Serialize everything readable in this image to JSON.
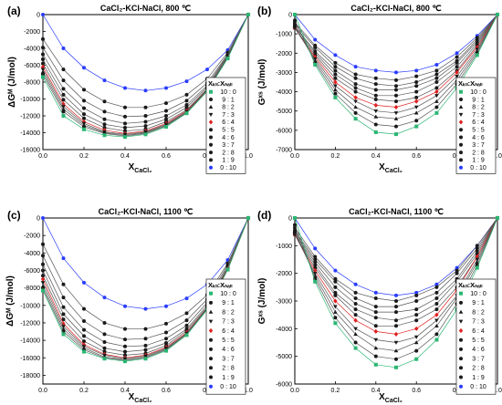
{
  "panel_text": {
    "a": {
      "letter": "(a)",
      "title": "CaCl₂-KCl-NaCl, 800 ℃",
      "ylabel": "ΔGᴹ (J/mol)",
      "xlabel": "X",
      "xlabel_sub": "CaCl₂"
    },
    "b": {
      "letter": "(b)",
      "title": "CaCl₂-KCl-NaCl, 800 ℃",
      "ylabel": "Gˣˢ (J/mol)",
      "xlabel": "X",
      "xlabel_sub": "CaCl₂"
    },
    "c": {
      "letter": "(c)",
      "title": "CaCl₂-KCl-NaCl, 1100 ℃",
      "ylabel": "ΔGᴹ (J/mol)",
      "xlabel": "X",
      "xlabel_sub": "CaCl₂"
    },
    "d": {
      "letter": "(d)",
      "title": "CaCl₂-KCl-NaCl, 1100 ℃",
      "ylabel": "Gˣˢ (J/mol)",
      "xlabel": "X",
      "xlabel_sub": "CaCl₂"
    }
  },
  "legend": {
    "header": "Xₖₗₗ:Xₙₐₗₗ",
    "entries": [
      {
        "label": "10 : 0",
        "marker": "square",
        "color": "#2bb673"
      },
      {
        "label": "9 : 1",
        "marker": "circle",
        "color": "#1a1a1a"
      },
      {
        "label": "8 : 2",
        "marker": "triangle-up",
        "color": "#1a1a1a"
      },
      {
        "label": "7 : 3",
        "marker": "triangle-down",
        "color": "#1a1a1a"
      },
      {
        "label": "6 : 4",
        "marker": "diamond",
        "color": "#e02020"
      },
      {
        "label": "5 : 5",
        "marker": "circle",
        "color": "#1a1a1a"
      },
      {
        "label": "4 : 6",
        "marker": "circle",
        "color": "#1a1a1a"
      },
      {
        "label": "3 : 7",
        "marker": "circle",
        "color": "#1a1a1a"
      },
      {
        "label": "2 : 8",
        "marker": "circle",
        "color": "#1a1a1a"
      },
      {
        "label": "1 : 9",
        "marker": "circle",
        "color": "#1a1a1a"
      },
      {
        "label": "0 : 10",
        "marker": "circle",
        "color": "#2a3cff"
      }
    ]
  },
  "chart_data": [
    {
      "panel": "a",
      "type": "line",
      "xlim": [
        0,
        1.0
      ],
      "ylim": [
        -16000,
        0
      ],
      "xticks": [
        0.0,
        0.2,
        0.4,
        0.6,
        0.8,
        1.0
      ],
      "yticks": [
        0,
        -2000,
        -4000,
        -6000,
        -8000,
        -10000,
        -12000,
        -14000,
        -16000
      ],
      "x": [
        0.0,
        0.1,
        0.2,
        0.3,
        0.4,
        0.5,
        0.6,
        0.7,
        0.8,
        0.9,
        1.0
      ],
      "series": [
        {
          "name": "10 : 0",
          "values": [
            -7400,
            -12000,
            -13600,
            -14300,
            -14500,
            -14200,
            -13300,
            -11700,
            -9100,
            -5200,
            0
          ]
        },
        {
          "name": "9 : 1",
          "values": [
            -7100,
            -11500,
            -13300,
            -14100,
            -14400,
            -14100,
            -13200,
            -11600,
            -9000,
            -5100,
            0
          ]
        },
        {
          "name": "8 : 2",
          "values": [
            -6800,
            -11200,
            -13100,
            -14000,
            -14300,
            -14000,
            -13100,
            -11600,
            -9000,
            -5100,
            0
          ]
        },
        {
          "name": "7 : 3",
          "values": [
            -6500,
            -10900,
            -12900,
            -13900,
            -14200,
            -13900,
            -13000,
            -11500,
            -8900,
            -5100,
            0
          ]
        },
        {
          "name": "6 : 4",
          "values": [
            -6200,
            -10600,
            -12700,
            -13700,
            -14100,
            -13800,
            -12900,
            -11400,
            -8900,
            -5100,
            0
          ]
        },
        {
          "name": "5 : 5",
          "values": [
            -5800,
            -10100,
            -12300,
            -13400,
            -13800,
            -13600,
            -12700,
            -11300,
            -8800,
            -5000,
            0
          ]
        },
        {
          "name": "4 : 6",
          "values": [
            -5300,
            -9500,
            -11800,
            -13000,
            -13400,
            -13200,
            -12400,
            -11000,
            -8600,
            -4900,
            0
          ]
        },
        {
          "name": "3 : 7",
          "values": [
            -4700,
            -8800,
            -11100,
            -12400,
            -12900,
            -12700,
            -12000,
            -10700,
            -8400,
            -4800,
            0
          ]
        },
        {
          "name": "2 : 8",
          "values": [
            -3900,
            -7800,
            -10200,
            -11500,
            -12100,
            -12000,
            -11400,
            -10200,
            -8100,
            -4700,
            0
          ]
        },
        {
          "name": "1 : 9",
          "values": [
            -2900,
            -6500,
            -8900,
            -10300,
            -11000,
            -11000,
            -10500,
            -9500,
            -7600,
            -4500,
            0
          ]
        },
        {
          "name": "0 : 10",
          "values": [
            0,
            -4000,
            -6300,
            -7800,
            -8700,
            -9000,
            -8700,
            -7900,
            -6500,
            -4200,
            0
          ]
        }
      ]
    },
    {
      "panel": "b",
      "type": "line",
      "xlim": [
        0,
        1.0
      ],
      "ylim": [
        -7000,
        0
      ],
      "xticks": [
        0.0,
        0.2,
        0.4,
        0.6,
        0.8,
        1.0
      ],
      "yticks": [
        0,
        -1000,
        -2000,
        -3000,
        -4000,
        -5000,
        -6000,
        -7000
      ],
      "x": [
        0.0,
        0.1,
        0.2,
        0.3,
        0.4,
        0.5,
        0.6,
        0.7,
        0.8,
        0.9,
        1.0
      ],
      "series": [
        {
          "name": "10 : 0",
          "values": [
            0,
            -2600,
            -4300,
            -5400,
            -6100,
            -6200,
            -5800,
            -5100,
            -3800,
            -2100,
            0
          ]
        },
        {
          "name": "9 : 1",
          "values": [
            -300,
            -2500,
            -4100,
            -5100,
            -5700,
            -5800,
            -5500,
            -4800,
            -3600,
            -2000,
            0
          ]
        },
        {
          "name": "8 : 2",
          "values": [
            -600,
            -2400,
            -3900,
            -4800,
            -5300,
            -5400,
            -5100,
            -4500,
            -3400,
            -1900,
            0
          ]
        },
        {
          "name": "7 : 3",
          "values": [
            -700,
            -2300,
            -3700,
            -4500,
            -5000,
            -5100,
            -4800,
            -4200,
            -3200,
            -1800,
            0
          ]
        },
        {
          "name": "6 : 4",
          "values": [
            -700,
            -2200,
            -3500,
            -4300,
            -4700,
            -4800,
            -4500,
            -4000,
            -3000,
            -1700,
            0
          ]
        },
        {
          "name": "5 : 5",
          "values": [
            -700,
            -2100,
            -3300,
            -4000,
            -4400,
            -4500,
            -4300,
            -3800,
            -2900,
            -1600,
            0
          ]
        },
        {
          "name": "4 : 6",
          "values": [
            -600,
            -2000,
            -3100,
            -3800,
            -4200,
            -4200,
            -4000,
            -3500,
            -2700,
            -1500,
            0
          ]
        },
        {
          "name": "3 : 7",
          "values": [
            -600,
            -1900,
            -2900,
            -3600,
            -3900,
            -3900,
            -3700,
            -3300,
            -2500,
            -1400,
            0
          ]
        },
        {
          "name": "2 : 8",
          "values": [
            -500,
            -1700,
            -2700,
            -3300,
            -3600,
            -3700,
            -3500,
            -3100,
            -2400,
            -1300,
            0
          ]
        },
        {
          "name": "1 : 9",
          "values": [
            -400,
            -1600,
            -2500,
            -3100,
            -3300,
            -3400,
            -3200,
            -2900,
            -2200,
            -1200,
            0
          ]
        },
        {
          "name": "0 : 10",
          "values": [
            0,
            -1300,
            -2100,
            -2700,
            -2900,
            -3000,
            -2900,
            -2600,
            -2000,
            -1100,
            0
          ]
        }
      ]
    },
    {
      "panel": "c",
      "type": "line",
      "xlim": [
        0,
        1.0
      ],
      "ylim": [
        -19000,
        0
      ],
      "xticks": [
        0.0,
        0.2,
        0.4,
        0.6,
        0.8,
        1.0
      ],
      "yticks": [
        0,
        -2000,
        -4000,
        -6000,
        -8000,
        -10000,
        -12000,
        -14000,
        -16000,
        -18000
      ],
      "x": [
        0.0,
        0.1,
        0.2,
        0.3,
        0.4,
        0.5,
        0.6,
        0.7,
        0.8,
        0.9,
        1.0
      ],
      "series": [
        {
          "name": "10 : 0",
          "values": [
            -8300,
            -13300,
            -15300,
            -16100,
            -16400,
            -16100,
            -15200,
            -13400,
            -10500,
            -5900,
            0
          ]
        },
        {
          "name": "9 : 1",
          "values": [
            -8100,
            -13000,
            -15100,
            -16000,
            -16300,
            -16000,
            -15100,
            -13300,
            -10400,
            -5900,
            0
          ]
        },
        {
          "name": "8 : 2",
          "values": [
            -7800,
            -12700,
            -14900,
            -15900,
            -16200,
            -15900,
            -15000,
            -13300,
            -10400,
            -5900,
            0
          ]
        },
        {
          "name": "7 : 3",
          "values": [
            -7400,
            -12400,
            -14700,
            -15700,
            -16100,
            -15800,
            -14900,
            -13200,
            -10300,
            -5900,
            0
          ]
        },
        {
          "name": "6 : 4",
          "values": [
            -7000,
            -12100,
            -14500,
            -15600,
            -16000,
            -15700,
            -14800,
            -13100,
            -10300,
            -5800,
            0
          ]
        },
        {
          "name": "5 : 5",
          "values": [
            -6600,
            -11600,
            -14100,
            -15300,
            -15700,
            -15500,
            -14600,
            -12900,
            -10200,
            -5800,
            0
          ]
        },
        {
          "name": "4 : 6",
          "values": [
            -6000,
            -11000,
            -13500,
            -14900,
            -15300,
            -15100,
            -14300,
            -12700,
            -10000,
            -5700,
            0
          ]
        },
        {
          "name": "3 : 7",
          "values": [
            -5300,
            -10200,
            -12800,
            -14200,
            -14700,
            -14600,
            -13800,
            -12300,
            -9700,
            -5600,
            0
          ]
        },
        {
          "name": "2 : 8",
          "values": [
            -4300,
            -9100,
            -11800,
            -13300,
            -13900,
            -13800,
            -13100,
            -11700,
            -9300,
            -5400,
            0
          ]
        },
        {
          "name": "1 : 9",
          "values": [
            -3000,
            -7600,
            -10400,
            -12000,
            -12700,
            -12700,
            -12100,
            -10900,
            -8800,
            -5200,
            0
          ]
        },
        {
          "name": "0 : 10",
          "values": [
            0,
            -4600,
            -7400,
            -9100,
            -10100,
            -10400,
            -10100,
            -9200,
            -7600,
            -4800,
            0
          ]
        }
      ]
    },
    {
      "panel": "d",
      "type": "line",
      "xlim": [
        0,
        1.0
      ],
      "ylim": [
        -6000,
        0
      ],
      "xticks": [
        0.0,
        0.2,
        0.4,
        0.6,
        0.8,
        1.0
      ],
      "yticks": [
        0,
        -1000,
        -2000,
        -3000,
        -4000,
        -5000,
        -6000
      ],
      "x": [
        0.0,
        0.1,
        0.2,
        0.3,
        0.4,
        0.5,
        0.6,
        0.7,
        0.8,
        0.9,
        1.0
      ],
      "series": [
        {
          "name": "10 : 0",
          "values": [
            0,
            -2300,
            -3800,
            -4700,
            -5300,
            -5400,
            -5100,
            -4400,
            -3300,
            -1800,
            0
          ]
        },
        {
          "name": "9 : 1",
          "values": [
            -250,
            -2200,
            -3600,
            -4500,
            -5000,
            -5100,
            -4800,
            -4200,
            -3100,
            -1700,
            0
          ]
        },
        {
          "name": "8 : 2",
          "values": [
            -500,
            -2100,
            -3400,
            -4200,
            -4700,
            -4800,
            -4500,
            -3900,
            -2900,
            -1600,
            0
          ]
        },
        {
          "name": "7 : 3",
          "values": [
            -600,
            -2000,
            -3200,
            -4000,
            -4400,
            -4500,
            -4300,
            -3700,
            -2800,
            -1500,
            0
          ]
        },
        {
          "name": "6 : 4",
          "values": [
            -600,
            -1900,
            -3000,
            -3700,
            -4100,
            -4200,
            -4000,
            -3500,
            -2600,
            -1400,
            0
          ]
        },
        {
          "name": "5 : 5",
          "values": [
            -600,
            -1800,
            -2800,
            -3500,
            -3900,
            -3900,
            -3700,
            -3300,
            -2500,
            -1400,
            0
          ]
        },
        {
          "name": "4 : 6",
          "values": [
            -550,
            -1700,
            -2700,
            -3300,
            -3600,
            -3700,
            -3500,
            -3100,
            -2300,
            -1300,
            0
          ]
        },
        {
          "name": "3 : 7",
          "values": [
            -500,
            -1600,
            -2500,
            -3100,
            -3400,
            -3400,
            -3300,
            -2900,
            -2200,
            -1200,
            0
          ]
        },
        {
          "name": "2 : 8",
          "values": [
            -450,
            -1500,
            -2300,
            -2900,
            -3200,
            -3200,
            -3000,
            -2700,
            -2000,
            -1100,
            0
          ]
        },
        {
          "name": "1 : 9",
          "values": [
            -350,
            -1400,
            -2200,
            -2700,
            -2900,
            -3000,
            -2800,
            -2500,
            -1900,
            -1000,
            0
          ]
        },
        {
          "name": "0 : 10",
          "values": [
            0,
            -1100,
            -1900,
            -2400,
            -2700,
            -2800,
            -2700,
            -2400,
            -1800,
            -1000,
            0
          ]
        }
      ]
    }
  ]
}
